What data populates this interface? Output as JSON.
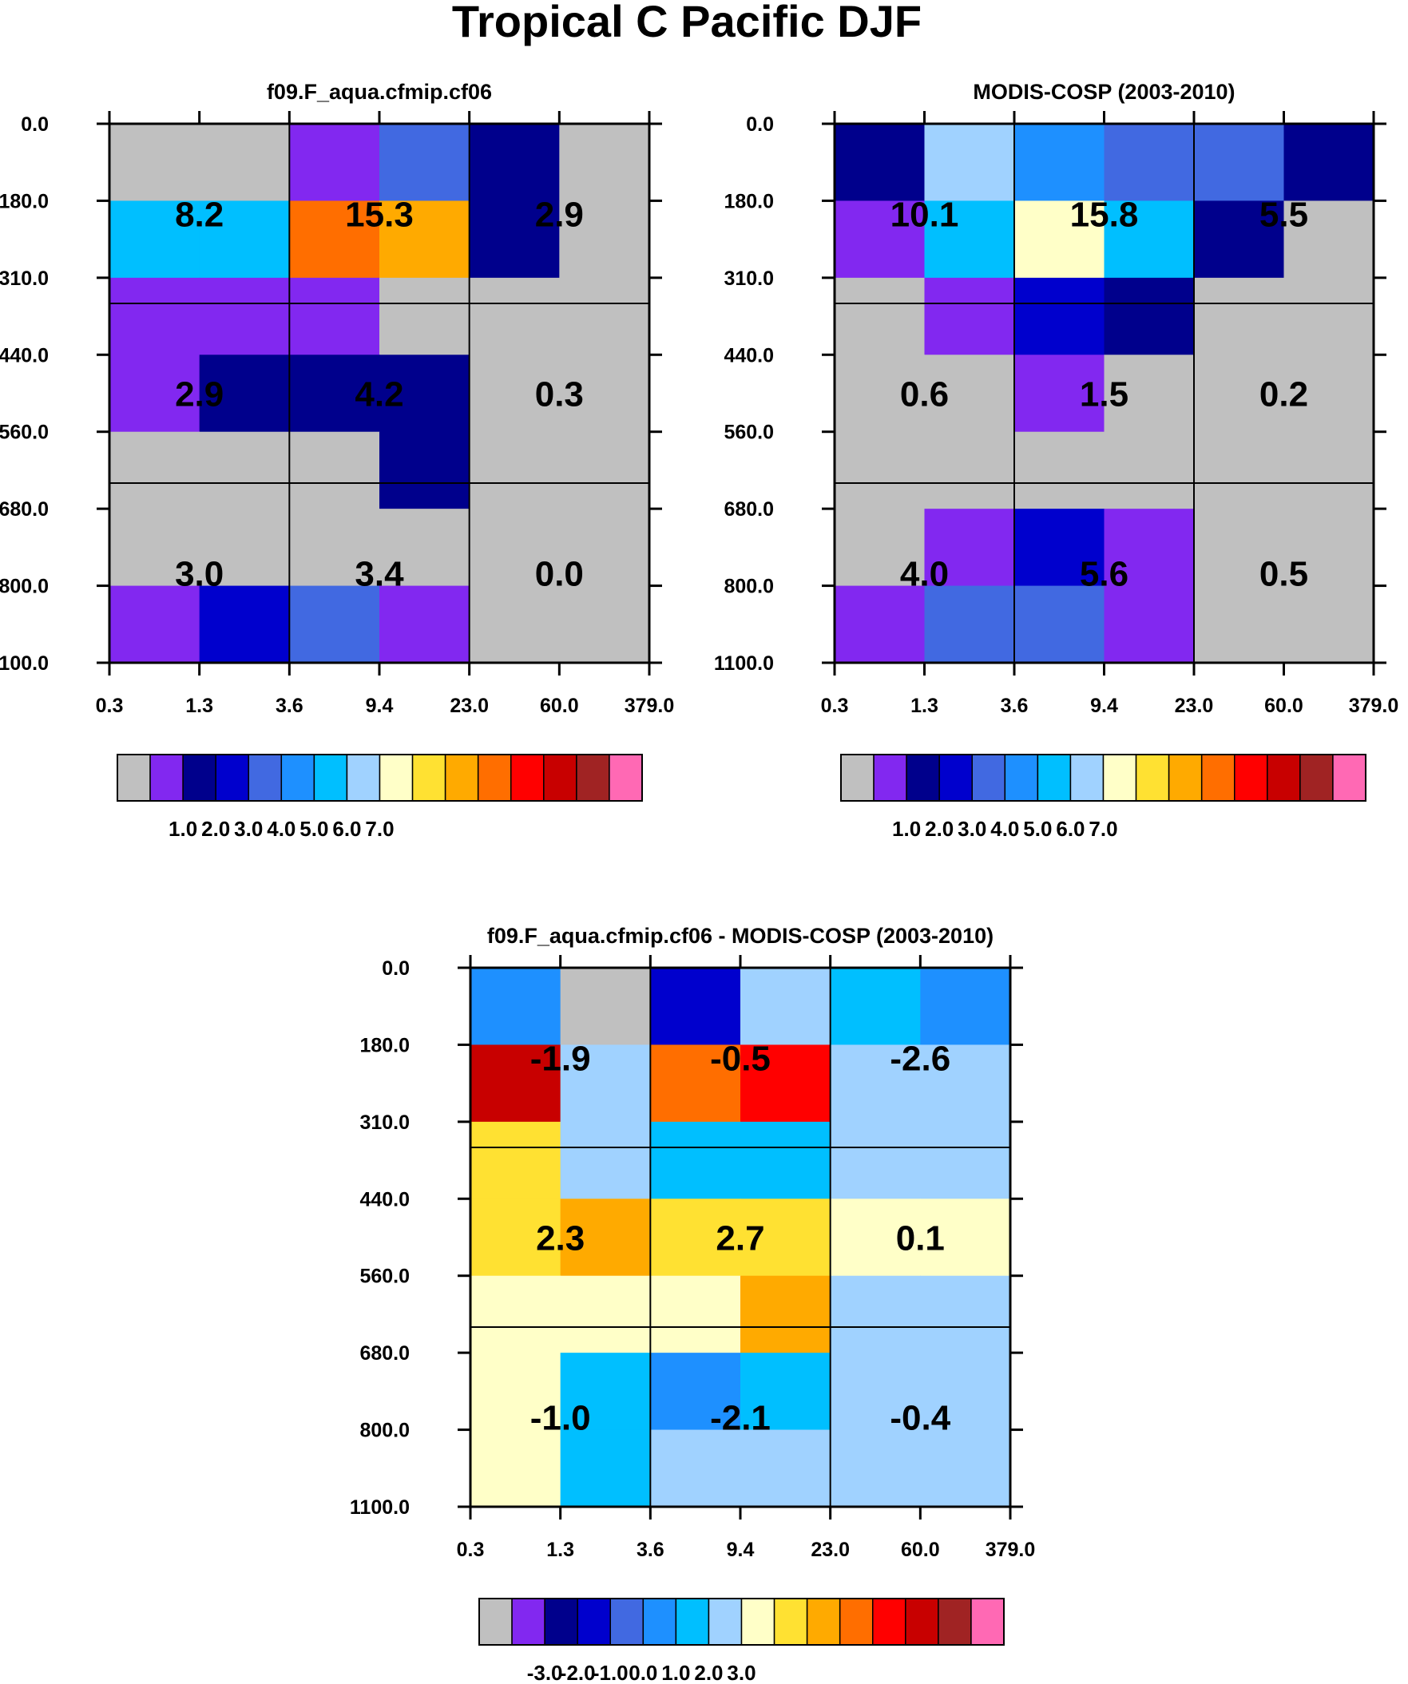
{
  "figure_title": "Tropical C Pacific DJF",
  "colors": {
    "palette": [
      "#c0c0c0",
      "#8228f0",
      "#00008c",
      "#0000cd",
      "#4169e1",
      "#1e90ff",
      "#00bfff",
      "#a0d2ff",
      "#ffffc8",
      "#ffe132",
      "#ffaa00",
      "#ff6e00",
      "#ff0000",
      "#c80000",
      "#a02323",
      "#ff69b4"
    ]
  },
  "chart_data": [
    {
      "type": "heatmap",
      "title": "f09.F_aqua.cfmip.cf06",
      "x_ticks": [
        "0.3",
        "1.3",
        "3.6",
        "9.4",
        "23.0",
        "60.0",
        "379.0"
      ],
      "y_ticks": [
        "0.0",
        "180.0",
        "310.0",
        "440.0",
        "560.0",
        "680.0",
        "800.0",
        "1100.0"
      ],
      "color_index": [
        [
          0,
          0,
          1,
          4,
          2,
          0
        ],
        [
          6,
          6,
          11,
          10,
          2,
          0
        ],
        [
          1,
          1,
          1,
          0,
          0,
          0
        ],
        [
          1,
          2,
          2,
          2,
          0,
          0
        ],
        [
          0,
          0,
          0,
          2,
          0,
          0
        ],
        [
          0,
          0,
          0,
          0,
          0,
          0
        ],
        [
          1,
          3,
          4,
          1,
          0,
          0
        ]
      ],
      "box_labels": [
        [
          "8.2",
          "15.3",
          "2.9"
        ],
        [
          "2.9",
          "4.2",
          "0.3"
        ],
        [
          "3.0",
          "3.4",
          "0.0"
        ]
      ],
      "colorbar": {
        "labels": [
          "1.0",
          "2.0",
          "3.0",
          "4.0",
          "5.0",
          "6.0",
          "7.0"
        ]
      }
    },
    {
      "type": "heatmap",
      "title": "MODIS-COSP (2003-2010)",
      "x_ticks": [
        "0.3",
        "1.3",
        "3.6",
        "9.4",
        "23.0",
        "60.0",
        "379.0"
      ],
      "y_ticks": [
        "0.0",
        "180.0",
        "310.0",
        "440.0",
        "560.0",
        "680.0",
        "800.0",
        "1100.0"
      ],
      "color_index": [
        [
          2,
          7,
          5,
          4,
          4,
          2
        ],
        [
          1,
          6,
          8,
          6,
          2,
          0
        ],
        [
          0,
          1,
          3,
          2,
          0,
          0
        ],
        [
          0,
          0,
          1,
          0,
          0,
          0
        ],
        [
          0,
          0,
          0,
          0,
          0,
          0
        ],
        [
          0,
          1,
          3,
          1,
          0,
          0
        ],
        [
          1,
          4,
          4,
          1,
          0,
          0
        ]
      ],
      "box_labels": [
        [
          "10.1",
          "15.8",
          "5.5"
        ],
        [
          "0.6",
          "1.5",
          "0.2"
        ],
        [
          "4.0",
          "5.6",
          "0.5"
        ]
      ],
      "colorbar": {
        "labels": [
          "1.0",
          "2.0",
          "3.0",
          "4.0",
          "5.0",
          "6.0",
          "7.0"
        ]
      }
    },
    {
      "type": "heatmap",
      "title": "f09.F_aqua.cfmip.cf06 - MODIS-COSP (2003-2010)",
      "x_ticks": [
        "0.3",
        "1.3",
        "3.6",
        "9.4",
        "23.0",
        "60.0",
        "379.0"
      ],
      "y_ticks": [
        "0.0",
        "180.0",
        "310.0",
        "440.0",
        "560.0",
        "680.0",
        "800.0",
        "1100.0"
      ],
      "color_index": [
        [
          5,
          0,
          3,
          7,
          6,
          5
        ],
        [
          13,
          7,
          11,
          12,
          7,
          7
        ],
        [
          9,
          7,
          6,
          6,
          7,
          7
        ],
        [
          9,
          10,
          9,
          9,
          8,
          8
        ],
        [
          8,
          8,
          8,
          10,
          7,
          7
        ],
        [
          8,
          6,
          5,
          6,
          7,
          7
        ],
        [
          8,
          6,
          7,
          7,
          7,
          7
        ]
      ],
      "box_labels": [
        [
          "-1.9",
          "-0.5",
          "-2.6"
        ],
        [
          "2.3",
          "2.7",
          "0.1"
        ],
        [
          "-1.0",
          "-2.1",
          "-0.4"
        ]
      ],
      "colorbar": {
        "labels": [
          "-3.0",
          "-2.0",
          "-1.0",
          "0.0",
          "1.0",
          "2.0",
          "3.0"
        ]
      }
    }
  ]
}
